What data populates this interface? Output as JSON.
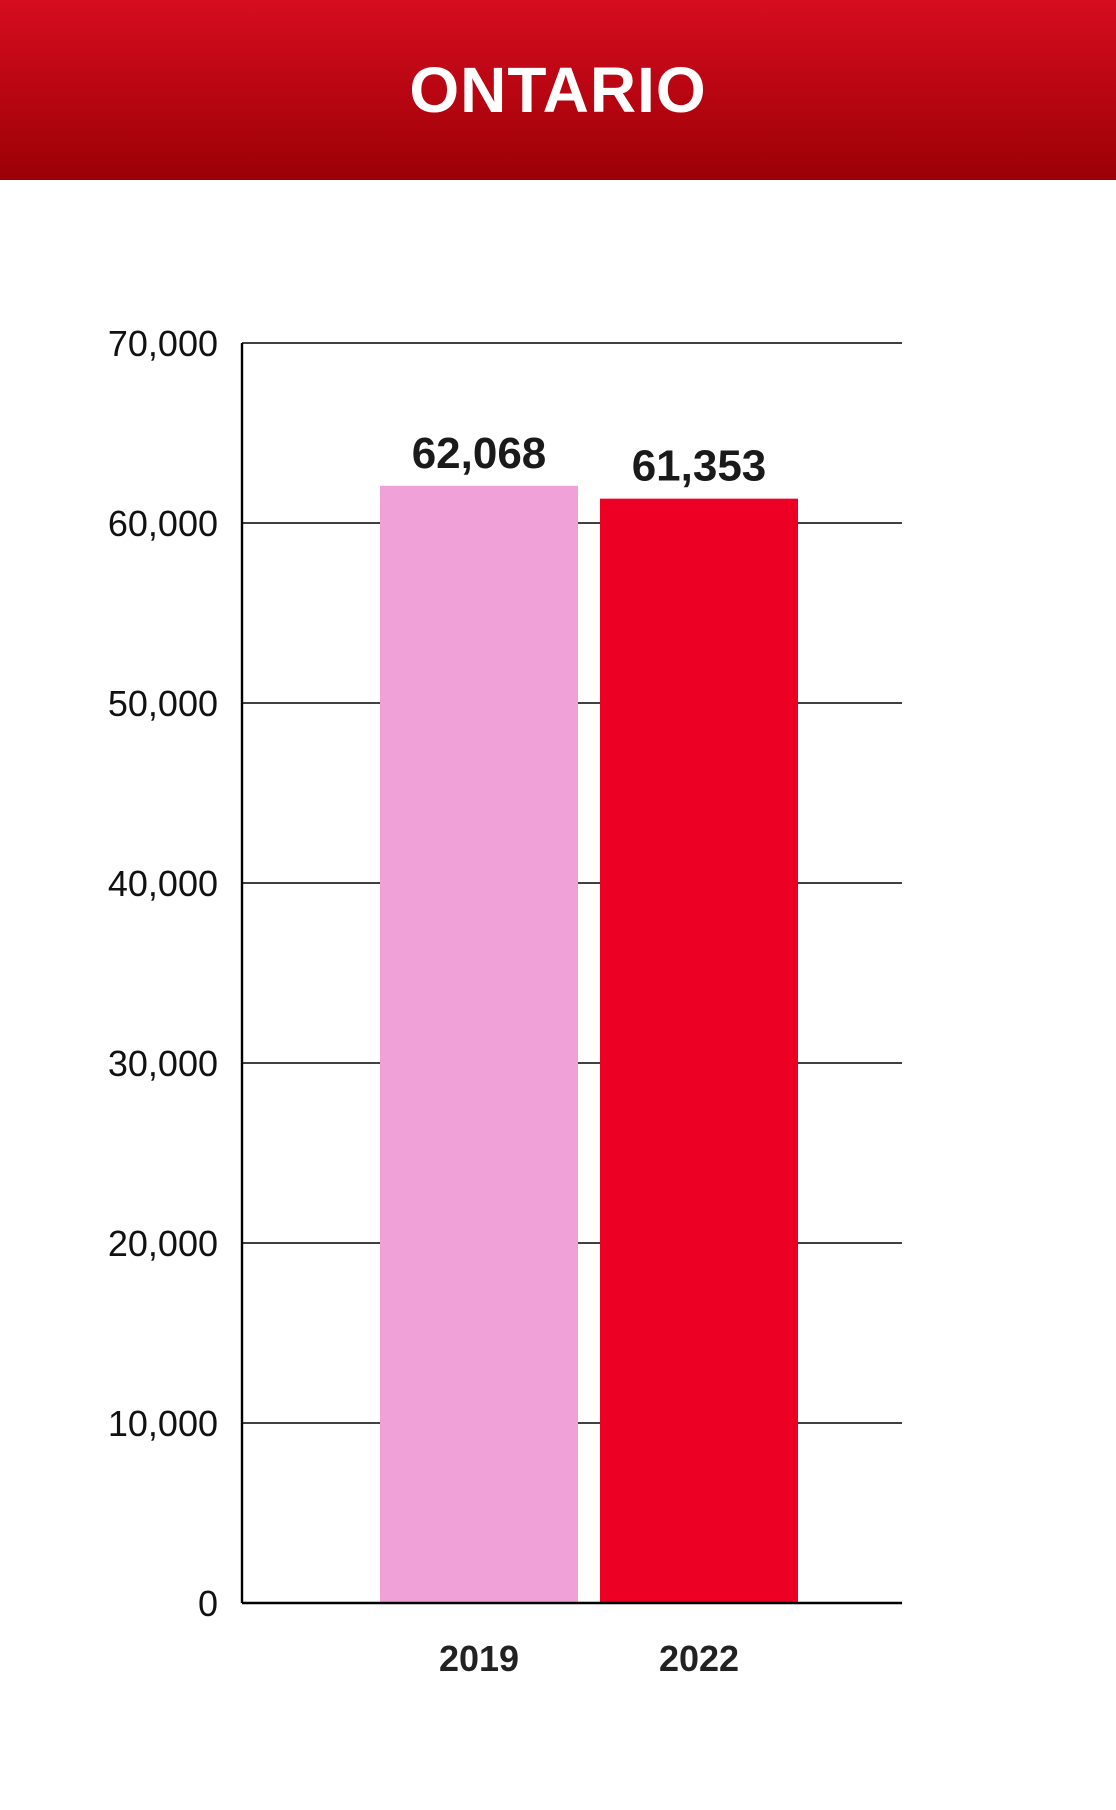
{
  "header": {
    "title": "ONTARIO",
    "bg_top": "#d60c1f",
    "bg_bottom": "#9c0006"
  },
  "chart_data": {
    "type": "bar",
    "categories": [
      "2019",
      "2022"
    ],
    "values": [
      62068,
      61353
    ],
    "value_labels": [
      "62,068",
      "61,353"
    ],
    "colors": [
      "#f0a1d8",
      "#ec0125"
    ],
    "ylim": [
      0,
      70000
    ],
    "yticks": [
      0,
      10000,
      20000,
      30000,
      40000,
      50000,
      60000,
      70000
    ],
    "ytick_labels": [
      "0",
      "10,000",
      "20,000",
      "30,000",
      "40,000",
      "50,000",
      "60,000",
      "70,000"
    ],
    "grid": true,
    "title": "",
    "xlabel": "",
    "ylabel": ""
  }
}
